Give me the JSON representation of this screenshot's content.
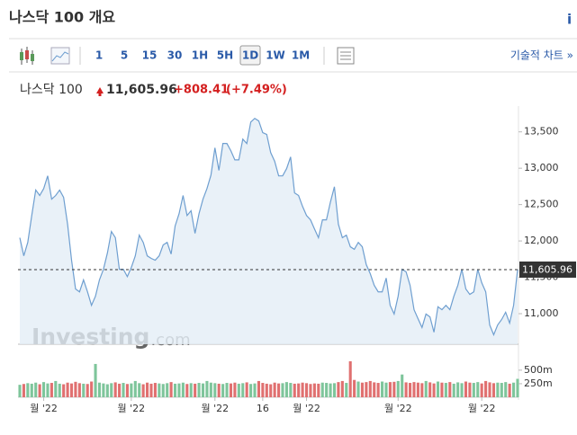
{
  "header": {
    "title": "나스닥 100 개요",
    "info": "i"
  },
  "toolbar": {
    "intervals": [
      "1",
      "5",
      "15",
      "30",
      "1H",
      "5H",
      "1D",
      "1W",
      "1M"
    ],
    "selected": 6,
    "technical_chart": "기술적 차트 »"
  },
  "quote": {
    "name": "나스닥 100",
    "change": "+808.41",
    "change_percent": "(+7.49%)"
  },
  "chart_data": {
    "type": "area",
    "color": "#6f9fd0",
    "fill": "#e4edf6",
    "values": [
      12045,
      11795,
      11980,
      12350,
      12700,
      12625,
      12720,
      12895,
      12575,
      12625,
      12700,
      12600,
      12230,
      11735,
      11340,
      11300,
      11465,
      11300,
      11115,
      11240,
      11465,
      11610,
      11835,
      12130,
      12045,
      11610,
      11610,
      11510,
      11635,
      11795,
      12080,
      11980,
      11795,
      11760,
      11735,
      11795,
      11945,
      11980,
      11820,
      12205,
      12375,
      12625,
      12350,
      12415,
      12105,
      12375,
      12575,
      12720,
      12905,
      13280,
      12970,
      13340,
      13340,
      13240,
      13115,
      13115,
      13400,
      13340,
      13635,
      13685,
      13650,
      13490,
      13465,
      13215,
      13095,
      12895,
      12895,
      12995,
      13155,
      12660,
      12625,
      12475,
      12350,
      12290,
      12165,
      12045,
      12290,
      12290,
      12535,
      12745,
      12230,
      12045,
      12080,
      11920,
      11885,
      11980,
      11920,
      11675,
      11550,
      11390,
      11300,
      11300,
      11490,
      11115,
      10995,
      11240,
      11610,
      11575,
      11390,
      11055,
      10930,
      10810,
      10995,
      10955,
      10745,
      11095,
      11055,
      11115,
      11055,
      11240,
      11390,
      11610,
      11340,
      11265,
      11300,
      11610,
      11425,
      11300,
      10845,
      10710,
      10845,
      10920,
      11020,
      10870,
      11115,
      11605.96
    ],
    "xlim": [
      0,
      125
    ],
    "xticks": [
      {
        "value": 6,
        "label": "월 '22"
      },
      {
        "value": 28,
        "label": "월 '22"
      },
      {
        "value": 49,
        "label": "월 '22"
      },
      {
        "value": 61,
        "label": "16"
      },
      {
        "value": 72,
        "label": "월 '22"
      },
      {
        "value": 95,
        "label": "월 '22"
      },
      {
        "value": 116,
        "label": "월 '22"
      }
    ],
    "ylim": [
      10580,
      13830
    ],
    "yticks": [
      {
        "value": 11000,
        "label": "11,000"
      },
      {
        "value": 11500,
        "label": "11,500"
      },
      {
        "value": 12000,
        "label": "12,000"
      },
      {
        "value": 12500,
        "label": "12,500"
      },
      {
        "value": 13000,
        "label": "13,000"
      },
      {
        "value": 13500,
        "label": "13,500"
      }
    ],
    "last": {
      "value": 11605.96,
      "label": "11,605.96"
    },
    "volume": {
      "values": [
        230,
        245,
        260,
        250,
        270,
        240,
        280,
        255,
        265,
        300,
        250,
        240,
        270,
        255,
        285,
        260,
        250,
        245,
        290,
        615,
        270,
        255,
        240,
        260,
        275,
        250,
        265,
        245,
        255,
        300,
        260,
        240,
        270,
        250,
        265,
        255,
        245,
        260,
        280,
        250,
        255,
        270,
        245,
        260,
        250,
        265,
        255,
        300,
        270,
        260,
        250,
        245,
        265,
        255,
        270,
        250,
        260,
        275,
        245,
        255,
        300,
        265,
        250,
        240,
        270,
        255,
        260,
        280,
        265,
        250,
        255,
        270,
        260,
        245,
        255,
        250,
        270,
        265,
        255,
        260,
        280,
        300,
        265,
        665,
        320,
        290,
        270,
        280,
        300,
        275,
        265,
        290,
        270,
        280,
        285,
        300,
        420,
        275,
        265,
        280,
        270,
        260,
        300,
        275,
        255,
        290,
        270,
        265,
        280,
        250,
        275,
        260,
        290,
        270,
        265,
        280,
        255,
        300,
        275,
        260,
        270,
        265,
        280,
        250,
        270,
        340
      ],
      "ylim": [
        0,
        780
      ],
      "yticks": [
        {
          "value": 250,
          "label": "250m"
        },
        {
          "value": 500,
          "label": "500m"
        }
      ],
      "up_color": "#7ec59b",
      "down_color": "#e07070"
    },
    "watermark": "Investing",
    "watermark_suffix": ".com"
  }
}
